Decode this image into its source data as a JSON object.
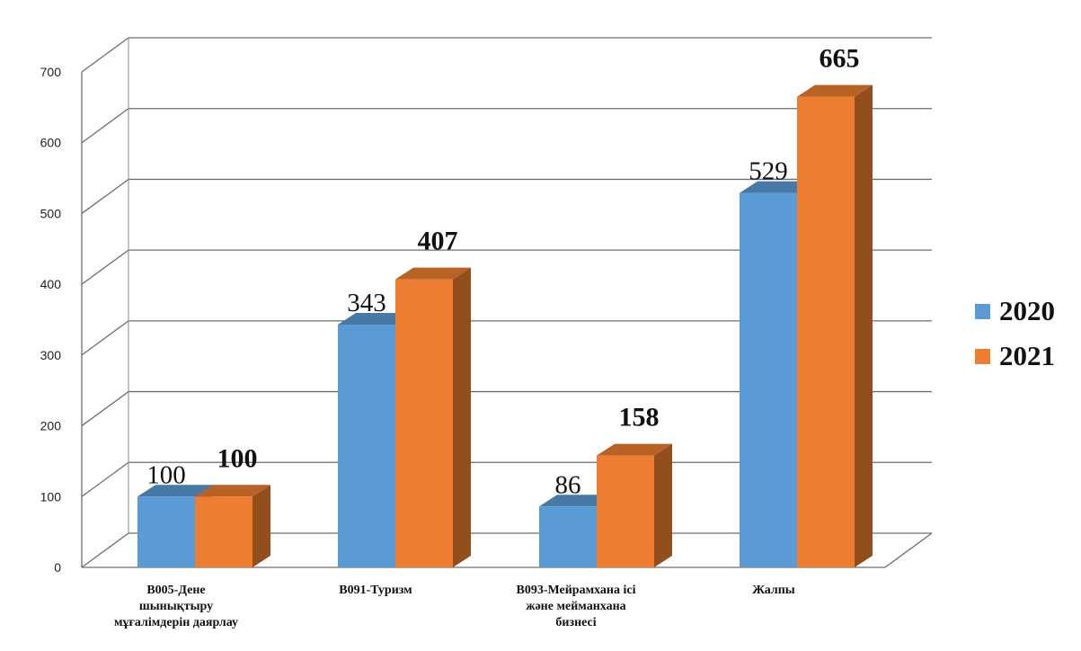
{
  "chart_data": {
    "type": "bar",
    "title": "",
    "xlabel": "",
    "ylabel": "",
    "ylim": [
      0,
      700
    ],
    "y_ticks": [
      "0",
      "100",
      "200",
      "300",
      "400",
      "500",
      "600",
      "700"
    ],
    "grid": true,
    "legend_position": "right",
    "categories": [
      [
        "B005-Дене",
        "шынықтыру",
        "мұғалімдерін  даярлау"
      ],
      [
        "B091-Туризм"
      ],
      [
        "B093-Мейрамхана   ісі",
        "және мейманхана",
        "бизнесі"
      ],
      [
        "Жалпы"
      ]
    ],
    "series": [
      {
        "name": "2020",
        "values": [
          100,
          343,
          86,
          529
        ],
        "labels": [
          "100",
          "343",
          "86",
          "529"
        ],
        "color": "#5b9bd5"
      },
      {
        "name": "2021",
        "values": [
          100,
          407,
          158,
          665
        ],
        "labels": [
          "100",
          "407",
          "158",
          "665"
        ],
        "color": "#ed7d31"
      }
    ]
  }
}
